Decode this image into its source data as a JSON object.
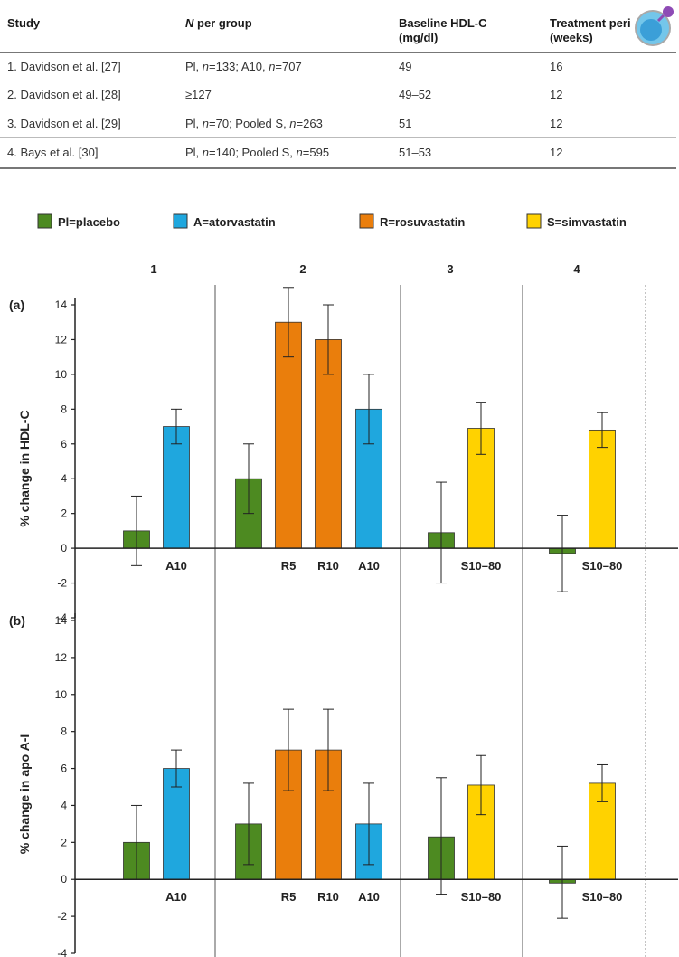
{
  "table": {
    "headers": [
      "Study",
      "N per group",
      "Baseline HDL-C (mg/dl)",
      "Treatment period (weeks)"
    ],
    "header_display": {
      "study": "Study",
      "n_italic": "N",
      "n_rest": " per group",
      "baseline_line1": "Baseline HDL-C",
      "baseline_line2": "(mg/dl)",
      "treatment_line1": "Treatment peri",
      "treatment_line2": "(weeks)"
    },
    "rows": [
      {
        "study": "1. Davidson et al. [27]",
        "n_parts": [
          "Pl, ",
          "n",
          "=133; A10, ",
          "n",
          "=707"
        ],
        "baseline": "49",
        "weeks": "16"
      },
      {
        "study": "2. Davidson et al. [28]",
        "n_parts": [
          "≥127"
        ],
        "baseline": "49–52",
        "weeks": "12"
      },
      {
        "study": "3. Davidson et al. [29]",
        "n_parts": [
          "Pl, ",
          "n",
          "=70; Pooled S, ",
          "n",
          "=263"
        ],
        "baseline": "51",
        "weeks": "12"
      },
      {
        "study": "4. Bays et al. [30]",
        "n_parts": [
          "Pl, ",
          "n",
          "=140; Pooled S, ",
          "n",
          "=595"
        ],
        "baseline": "51–53",
        "weeks": "12"
      }
    ]
  },
  "chart_data": {
    "type": "bar",
    "legend": [
      {
        "key": "Pl",
        "label": "Pl=placebo",
        "color": "#4d8a21"
      },
      {
        "key": "A",
        "label": "A=atorvastatin",
        "color": "#1fa7de"
      },
      {
        "key": "R",
        "label": "R=rosuvastatin",
        "color": "#ea7e0c"
      },
      {
        "key": "S",
        "label": "S=simvastatin",
        "color": "#ffd200"
      }
    ],
    "study_numbers": [
      "1",
      "2",
      "3",
      "4"
    ],
    "ylim": [
      -4,
      14
    ],
    "yticks": [
      -4,
      -2,
      0,
      2,
      4,
      6,
      8,
      10,
      12,
      14
    ],
    "panels": [
      {
        "label": "(a)",
        "ylabel": "% change in HDL-C",
        "bars": [
          {
            "study": 1,
            "treatment": "Pl",
            "label": "",
            "value": 1.0,
            "err_low": -1.0,
            "err_high": 3.0
          },
          {
            "study": 1,
            "treatment": "A",
            "label": "A10",
            "value": 7.0,
            "err_low": 6.0,
            "err_high": 8.0
          },
          {
            "study": 2,
            "treatment": "Pl",
            "label": "",
            "value": 4.0,
            "err_low": 2.0,
            "err_high": 6.0
          },
          {
            "study": 2,
            "treatment": "R",
            "label": "R5",
            "value": 13.0,
            "err_low": 11.0,
            "err_high": 15.0
          },
          {
            "study": 2,
            "treatment": "R",
            "label": "R10",
            "value": 12.0,
            "err_low": 10.0,
            "err_high": 14.0
          },
          {
            "study": 2,
            "treatment": "A",
            "label": "A10",
            "value": 8.0,
            "err_low": 6.0,
            "err_high": 10.0
          },
          {
            "study": 3,
            "treatment": "Pl",
            "label": "",
            "value": 0.9,
            "err_low": -2.0,
            "err_high": 3.8
          },
          {
            "study": 3,
            "treatment": "S",
            "label": "S10–80",
            "value": 6.9,
            "err_low": 5.4,
            "err_high": 8.4
          },
          {
            "study": 4,
            "treatment": "Pl",
            "label": "",
            "value": -0.3,
            "err_low": -2.5,
            "err_high": 1.9
          },
          {
            "study": 4,
            "treatment": "S",
            "label": "S10–80",
            "value": 6.8,
            "err_low": 5.8,
            "err_high": 7.8
          }
        ]
      },
      {
        "label": "(b)",
        "ylabel": "% change in apo A-I",
        "bars": [
          {
            "study": 1,
            "treatment": "Pl",
            "label": "",
            "value": 2.0,
            "err_low": 0.0,
            "err_high": 4.0
          },
          {
            "study": 1,
            "treatment": "A",
            "label": "A10",
            "value": 6.0,
            "err_low": 5.0,
            "err_high": 7.0
          },
          {
            "study": 2,
            "treatment": "Pl",
            "label": "",
            "value": 3.0,
            "err_low": 0.8,
            "err_high": 5.2
          },
          {
            "study": 2,
            "treatment": "R",
            "label": "R5",
            "value": 7.0,
            "err_low": 4.8,
            "err_high": 9.2
          },
          {
            "study": 2,
            "treatment": "R",
            "label": "R10",
            "value": 7.0,
            "err_low": 4.8,
            "err_high": 9.2
          },
          {
            "study": 2,
            "treatment": "A",
            "label": "A10",
            "value": 3.0,
            "err_low": 0.8,
            "err_high": 5.2
          },
          {
            "study": 3,
            "treatment": "Pl",
            "label": "",
            "value": 2.3,
            "err_low": -0.8,
            "err_high": 5.5
          },
          {
            "study": 3,
            "treatment": "S",
            "label": "S10–80",
            "value": 5.1,
            "err_low": 3.5,
            "err_high": 6.7
          },
          {
            "study": 4,
            "treatment": "Pl",
            "label": "",
            "value": -0.2,
            "err_low": -2.1,
            "err_high": 1.8
          },
          {
            "study": 4,
            "treatment": "S",
            "label": "S10–80",
            "value": 5.2,
            "err_low": 4.2,
            "err_high": 6.2
          }
        ]
      }
    ]
  }
}
